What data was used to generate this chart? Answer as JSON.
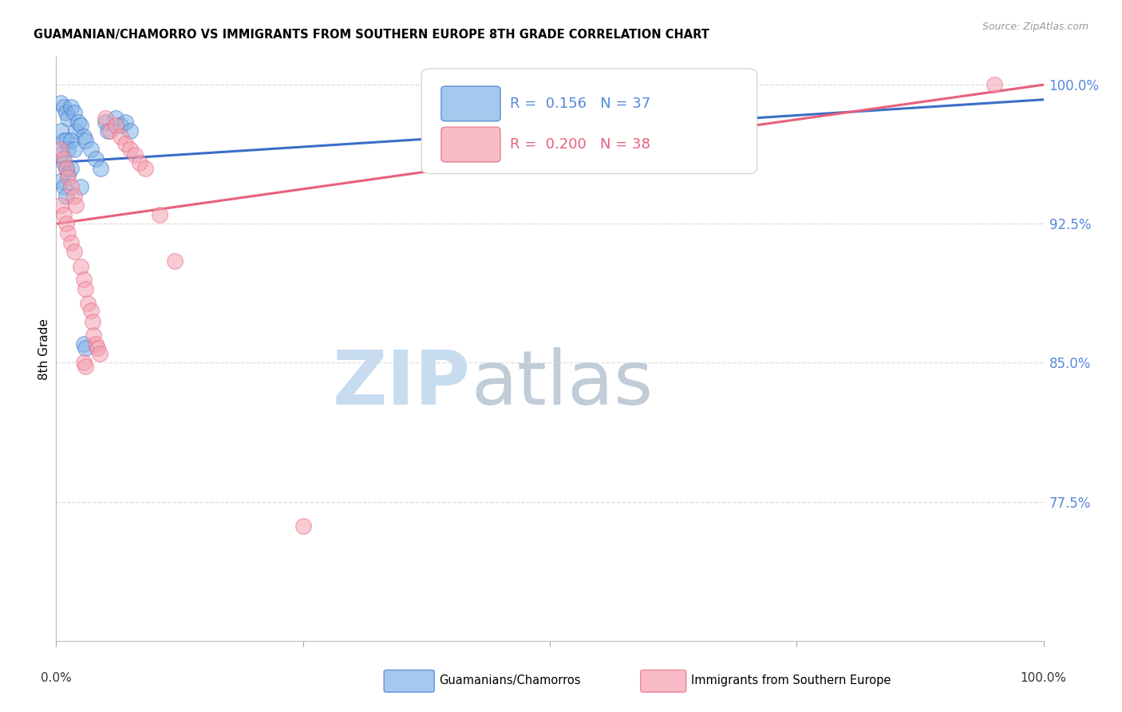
{
  "title": "GUAMANIAN/CHAMORRO VS IMMIGRANTS FROM SOUTHERN EUROPE 8TH GRADE CORRELATION CHART",
  "source": "Source: ZipAtlas.com",
  "ylabel": "8th Grade",
  "blue_r": "0.156",
  "blue_n": "37",
  "pink_r": "0.200",
  "pink_n": "38",
  "blue_color": "#7EB3E8",
  "pink_color": "#F4A0B0",
  "blue_line_color": "#3A6EC8",
  "pink_line_color": "#E8607A",
  "legend_label_blue": "Guamanians/Chamorros",
  "legend_label_pink": "Immigrants from Southern Europe",
  "blue_dots": [
    [
      0.5,
      99.0
    ],
    [
      0.8,
      98.8
    ],
    [
      1.0,
      98.5
    ],
    [
      1.2,
      98.2
    ],
    [
      1.5,
      98.8
    ],
    [
      1.8,
      98.5
    ],
    [
      2.0,
      97.5
    ],
    [
      2.2,
      98.0
    ],
    [
      2.5,
      97.8
    ],
    [
      2.8,
      97.2
    ],
    [
      0.5,
      97.5
    ],
    [
      0.8,
      97.0
    ],
    [
      1.0,
      97.0
    ],
    [
      1.2,
      96.5
    ],
    [
      1.5,
      97.0
    ],
    [
      1.8,
      96.5
    ],
    [
      0.5,
      96.2
    ],
    [
      0.8,
      95.8
    ],
    [
      1.0,
      95.5
    ],
    [
      1.2,
      95.2
    ],
    [
      1.5,
      95.5
    ],
    [
      0.5,
      94.8
    ],
    [
      0.8,
      94.5
    ],
    [
      1.0,
      94.0
    ],
    [
      3.0,
      97.0
    ],
    [
      3.5,
      96.5
    ],
    [
      4.0,
      96.0
    ],
    [
      4.5,
      95.5
    ],
    [
      2.5,
      94.5
    ],
    [
      2.8,
      86.0
    ],
    [
      3.0,
      85.8
    ],
    [
      5.0,
      98.0
    ],
    [
      5.2,
      97.5
    ],
    [
      6.0,
      98.2
    ],
    [
      6.5,
      97.8
    ],
    [
      7.0,
      98.0
    ],
    [
      7.5,
      97.5
    ]
  ],
  "pink_dots": [
    [
      0.5,
      96.5
    ],
    [
      0.8,
      96.0
    ],
    [
      1.0,
      95.5
    ],
    [
      1.2,
      95.0
    ],
    [
      1.5,
      94.5
    ],
    [
      1.8,
      94.0
    ],
    [
      2.0,
      93.5
    ],
    [
      5.0,
      98.2
    ],
    [
      5.5,
      97.5
    ],
    [
      6.0,
      97.8
    ],
    [
      6.5,
      97.2
    ],
    [
      7.0,
      96.8
    ],
    [
      7.5,
      96.5
    ],
    [
      8.0,
      96.2
    ],
    [
      8.5,
      95.8
    ],
    [
      9.0,
      95.5
    ],
    [
      0.5,
      93.5
    ],
    [
      0.8,
      93.0
    ],
    [
      1.0,
      92.5
    ],
    [
      1.2,
      92.0
    ],
    [
      1.5,
      91.5
    ],
    [
      1.8,
      91.0
    ],
    [
      2.5,
      90.2
    ],
    [
      2.8,
      89.5
    ],
    [
      3.0,
      89.0
    ],
    [
      3.2,
      88.2
    ],
    [
      3.5,
      87.8
    ],
    [
      3.7,
      87.2
    ],
    [
      3.8,
      86.5
    ],
    [
      4.0,
      86.0
    ],
    [
      4.2,
      85.8
    ],
    [
      4.4,
      85.5
    ],
    [
      2.8,
      85.0
    ],
    [
      3.0,
      84.8
    ],
    [
      10.5,
      93.0
    ],
    [
      12.0,
      90.5
    ],
    [
      25.0,
      76.2
    ],
    [
      95.0,
      100.0
    ]
  ],
  "blue_line_x": [
    0,
    100
  ],
  "blue_line_y": [
    95.8,
    99.2
  ],
  "pink_line_x": [
    0,
    100
  ],
  "pink_line_y": [
    92.5,
    100.0
  ],
  "xlim": [
    0,
    100
  ],
  "ylim": [
    70.0,
    101.5
  ],
  "ytick_values": [
    100.0,
    92.5,
    85.0,
    77.5
  ],
  "ytick_labels": [
    "100.0%",
    "92.5%",
    "85.0%",
    "77.5%"
  ],
  "ytick_color": "#5588DD",
  "grid_color": "#DDDDDD",
  "watermark_zip_color": "#C8DCF0",
  "watermark_atlas_color": "#C0CCD8"
}
